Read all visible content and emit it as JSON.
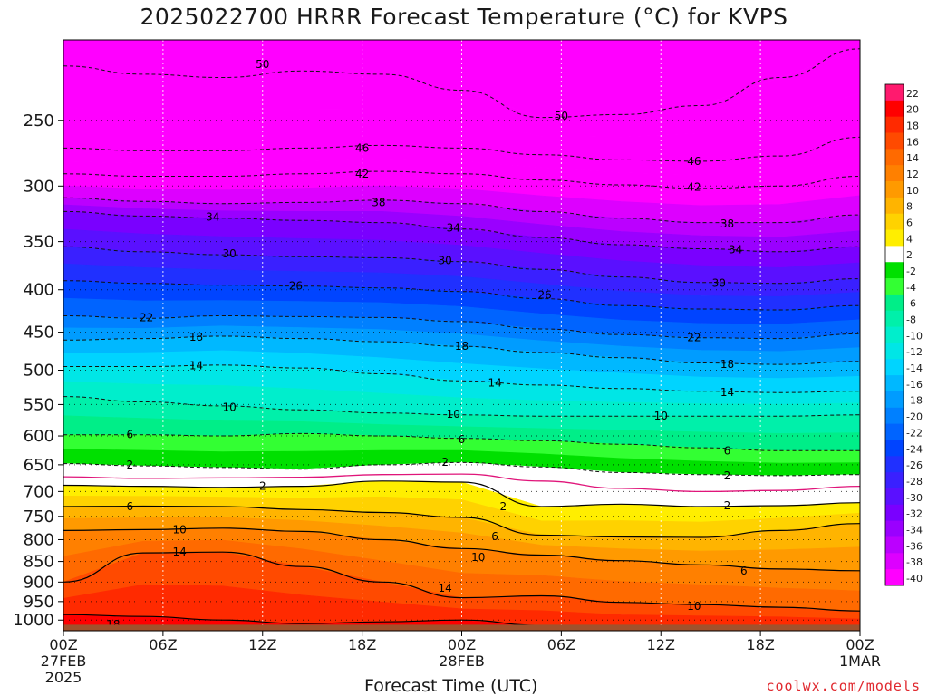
{
  "chart_data": {
    "type": "heatmap",
    "title": "2025022700 HRRR Forecast Temperature (°C) for KVPS",
    "xlabel": "Forecast Time (UTC)",
    "ylabel": "",
    "credit": "coolwx.com/models",
    "y_ticks": [
      250,
      300,
      350,
      400,
      450,
      500,
      550,
      600,
      650,
      700,
      750,
      800,
      850,
      900,
      950,
      1000
    ],
    "y_range": [
      200,
      1030
    ],
    "y_scale": "log-pressure",
    "x_ticks": [
      {
        "hour": 0,
        "label": "00Z",
        "sub1": "27FEB",
        "sub2": "2025"
      },
      {
        "hour": 6,
        "label": "06Z",
        "sub1": "",
        "sub2": ""
      },
      {
        "hour": 12,
        "label": "12Z",
        "sub1": "",
        "sub2": ""
      },
      {
        "hour": 18,
        "label": "18Z",
        "sub1": "",
        "sub2": ""
      },
      {
        "hour": 24,
        "label": "00Z",
        "sub1": "28FEB",
        "sub2": ""
      },
      {
        "hour": 30,
        "label": "06Z",
        "sub1": "",
        "sub2": ""
      },
      {
        "hour": 36,
        "label": "12Z",
        "sub1": "",
        "sub2": ""
      },
      {
        "hour": 42,
        "label": "18Z",
        "sub1": "",
        "sub2": ""
      },
      {
        "hour": 48,
        "label": "00Z",
        "sub1": "1MAR",
        "sub2": ""
      }
    ],
    "x_range": [
      0,
      48
    ],
    "colorbar": {
      "levels": [
        22,
        20,
        18,
        16,
        14,
        12,
        10,
        8,
        6,
        4,
        2,
        -2,
        -4,
        -6,
        -8,
        -10,
        -12,
        -14,
        -16,
        -18,
        -20,
        -22,
        -24,
        -26,
        -28,
        -30,
        -32,
        -34,
        -36,
        -38,
        -40
      ],
      "colors": [
        "#ff1a6e",
        "#ff0000",
        "#ff2a00",
        "#ff4a00",
        "#ff6a00",
        "#ff8000",
        "#ff9a00",
        "#ffb400",
        "#ffd200",
        "#ffee00",
        "#ffffff",
        "#00e000",
        "#33ff33",
        "#00ee88",
        "#00f0aa",
        "#00eecc",
        "#00e6e6",
        "#00d4ff",
        "#00b8ff",
        "#009cff",
        "#0080ff",
        "#0064ff",
        "#0044ff",
        "#2030ff",
        "#3a20ff",
        "#5a10ff",
        "#7a00ff",
        "#9a00ff",
        "#bb00ff",
        "#dd00ff",
        "#ff00ff"
      ]
    },
    "isotherms": [
      {
        "temp": -50,
        "p": [
          215,
          220,
          222,
          218,
          220,
          230,
          248,
          246,
          240,
          222,
          205
        ]
      },
      {
        "temp": -46,
        "p": [
          270,
          272,
          272,
          270,
          268,
          270,
          275,
          279,
          280,
          276,
          262
        ]
      },
      {
        "temp": -42,
        "p": [
          290,
          292,
          292,
          290,
          288,
          290,
          295,
          299,
          302,
          300,
          292
        ]
      },
      {
        "temp": -38,
        "p": [
          310,
          313,
          315,
          314,
          312,
          315,
          322,
          328,
          332,
          332,
          325
        ]
      },
      {
        "temp": -34,
        "p": [
          322,
          326,
          328,
          330,
          332,
          338,
          346,
          353,
          357,
          360,
          355
        ]
      },
      {
        "temp": -30,
        "p": [
          355,
          360,
          363,
          365,
          366,
          370,
          378,
          386,
          392,
          393,
          388
        ]
      },
      {
        "temp": -26,
        "p": [
          390,
          393,
          395,
          396,
          398,
          402,
          410,
          418,
          422,
          423,
          418
        ]
      },
      {
        "temp": -22,
        "p": [
          430,
          433,
          430,
          431,
          432,
          437,
          446,
          453,
          457,
          458,
          452
        ]
      },
      {
        "temp": -18,
        "p": [
          460,
          458,
          455,
          458,
          462,
          468,
          476,
          483,
          490,
          492,
          488
        ]
      },
      {
        "temp": -14,
        "p": [
          495,
          495,
          493,
          497,
          505,
          515,
          521,
          526,
          530,
          532,
          530
        ]
      },
      {
        "temp": -10,
        "p": [
          538,
          546,
          552,
          558,
          563,
          566,
          568,
          568,
          568,
          568,
          566
        ]
      },
      {
        "temp": -6,
        "p": [
          598,
          598,
          600,
          596,
          600,
          604,
          608,
          614,
          620,
          625,
          625
        ]
      },
      {
        "temp": -2,
        "p": [
          648,
          652,
          655,
          658,
          650,
          646,
          654,
          664,
          668,
          670,
          668
        ]
      },
      {
        "temp": 0,
        "p": [
          672,
          675,
          674,
          673,
          668,
          667,
          680,
          694,
          700,
          698,
          690
        ]
      },
      {
        "temp": 2,
        "p": [
          688,
          690,
          692,
          690,
          680,
          682,
          730,
          725,
          730,
          728,
          722
        ]
      },
      {
        "temp": 6,
        "p": [
          730,
          729,
          730,
          736,
          742,
          752,
          790,
          794,
          795,
          780,
          765
        ]
      },
      {
        "temp": 10,
        "p": [
          780,
          778,
          775,
          782,
          800,
          820,
          835,
          848,
          858,
          868,
          872
        ]
      },
      {
        "temp": 14,
        "p": [
          900,
          830,
          828,
          862,
          900,
          940,
          935,
          952,
          958,
          965,
          975
        ]
      },
      {
        "temp": 18,
        "p": [
          985,
          990,
          1000,
          1010,
          1005,
          1000,
          1015,
          1020,
          1020,
          1018,
          1020
        ]
      }
    ],
    "contour_labels": [
      {
        "text": "50",
        "h": 12.0,
        "p": 214
      },
      {
        "text": "50",
        "h": 30.0,
        "p": 247
      },
      {
        "text": "46",
        "h": 18.0,
        "p": 270
      },
      {
        "text": "46",
        "h": 38.0,
        "p": 280
      },
      {
        "text": "42",
        "h": 18.0,
        "p": 290
      },
      {
        "text": "42",
        "h": 38.0,
        "p": 301
      },
      {
        "text": "38",
        "h": 19.0,
        "p": 314
      },
      {
        "text": "38",
        "h": 40.0,
        "p": 333
      },
      {
        "text": "34",
        "h": 9.0,
        "p": 327
      },
      {
        "text": "34",
        "h": 23.5,
        "p": 337
      },
      {
        "text": "34",
        "h": 40.5,
        "p": 358
      },
      {
        "text": "30",
        "h": 10.0,
        "p": 362
      },
      {
        "text": "30",
        "h": 23.0,
        "p": 369
      },
      {
        "text": "30",
        "h": 39.5,
        "p": 393
      },
      {
        "text": "26",
        "h": 14.0,
        "p": 396
      },
      {
        "text": "26",
        "h": 29.0,
        "p": 406
      },
      {
        "text": "22",
        "h": 5.0,
        "p": 432
      },
      {
        "text": "22",
        "h": 38.0,
        "p": 457
      },
      {
        "text": "18",
        "h": 8.0,
        "p": 456
      },
      {
        "text": "18",
        "h": 24.0,
        "p": 468
      },
      {
        "text": "18",
        "h": 40.0,
        "p": 492
      },
      {
        "text": "14",
        "h": 8.0,
        "p": 494
      },
      {
        "text": "14",
        "h": 26.0,
        "p": 518
      },
      {
        "text": "14",
        "h": 40.0,
        "p": 532
      },
      {
        "text": "10",
        "h": 10.0,
        "p": 554
      },
      {
        "text": "10",
        "h": 23.5,
        "p": 565
      },
      {
        "text": "10",
        "h": 36.0,
        "p": 568
      },
      {
        "text": "6",
        "h": 4.0,
        "p": 598
      },
      {
        "text": "6",
        "h": 24.0,
        "p": 606
      },
      {
        "text": "6",
        "h": 40.0,
        "p": 625
      },
      {
        "text": "2",
        "h": 4.0,
        "p": 650
      },
      {
        "text": "2",
        "h": 23.0,
        "p": 645
      },
      {
        "text": "2",
        "h": 40.0,
        "p": 670
      },
      {
        "text": "2",
        "h": 12.0,
        "p": 690
      },
      {
        "text": "2",
        "h": 26.5,
        "p": 730
      },
      {
        "text": "2",
        "h": 40.0,
        "p": 728
      },
      {
        "text": "6",
        "h": 4.0,
        "p": 730
      },
      {
        "text": "6",
        "h": 26.0,
        "p": 793
      },
      {
        "text": "6",
        "h": 41.0,
        "p": 872
      },
      {
        "text": "10",
        "h": 7.0,
        "p": 778
      },
      {
        "text": "10",
        "h": 25.0,
        "p": 840
      },
      {
        "text": "10",
        "h": 38.0,
        "p": 962
      },
      {
        "text": "14",
        "h": 7.0,
        "p": 828
      },
      {
        "text": "14",
        "h": 23.0,
        "p": 915
      },
      {
        "text": "18",
        "h": 3.0,
        "p": 1012
      }
    ],
    "ground_color": "#a0522d",
    "freezing_line_color": "#e0157a"
  }
}
